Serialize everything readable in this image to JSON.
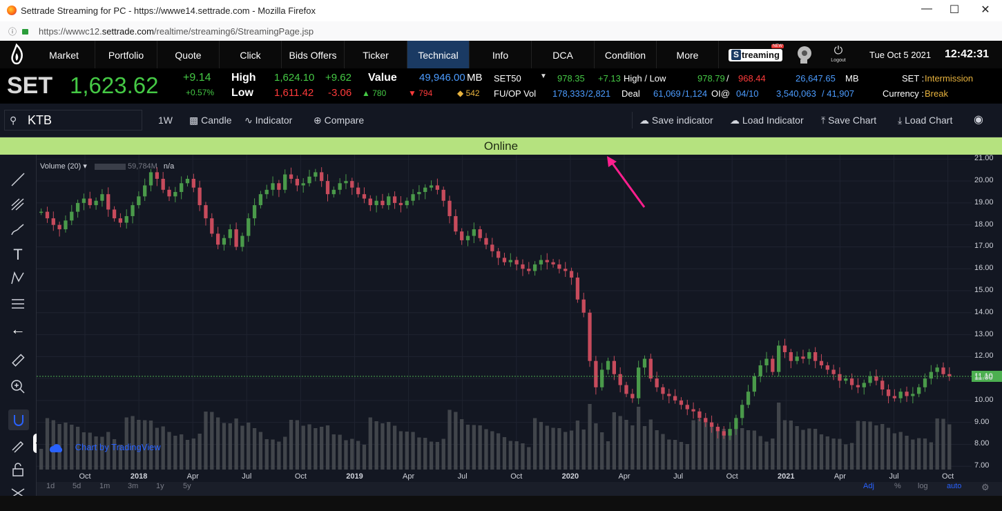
{
  "window": {
    "title": "Settrade Streaming for PC - https://wwwe14.settrade.com - Mozilla Firefox",
    "url_prefix": "https://wwwc12.",
    "url_domain": "settrade.com",
    "url_path": "/realtime/streaming6/StreamingPage.jsp"
  },
  "nav": {
    "items": [
      "Market",
      "Portfolio",
      "Quote",
      "Click",
      "Bids Offers",
      "Ticker",
      "Technical",
      "Info",
      "DCA",
      "Condition",
      "More"
    ],
    "active": "Technical",
    "streaming_label": "treaming",
    "new_badge": "NEW",
    "logout_label": "Logout",
    "date": "Tue Oct 5 2021",
    "time": "12:42:31"
  },
  "market": {
    "index_name": "SET",
    "index_value": "1,623.62",
    "change": "+9.14",
    "change_pct": "+0.57%",
    "high_label": "High",
    "high_value": "1,624.10",
    "high_change": "+9.62",
    "low_label": "Low",
    "low_value": "1,611.42",
    "low_change": "-3.06",
    "value_label": "Value",
    "value_amount": "49,946.00",
    "value_unit": "MB",
    "up_count": "780",
    "down_count": "794",
    "unch_count": "542",
    "set50_label": "SET50",
    "set50_value": "978.35",
    "set50_change": "+7.13",
    "hl_label": "High / Low",
    "set50_high": "978.79",
    "slash": "/",
    "set50_low": "968.44",
    "set50_value_amt": "26,647.65",
    "set50_unit": "MB",
    "set_status_label": "SET :",
    "set_status": "Intermission",
    "fuop_label": "FU/OP Vol",
    "fuop_1": "178,333",
    "fuop_2": "/2,821",
    "deal_label": "Deal",
    "deal_1": "61,069",
    "deal_2": "/1,124",
    "oi_label": "OI@",
    "oi_date": "04/10",
    "oi_1": "3,540,063",
    "oi_2": "/ 41,907",
    "currency_label": "Currency :",
    "currency_status": "Break"
  },
  "toolbar": {
    "symbol": "KTB",
    "interval": "1W",
    "candle": "Candle",
    "indicator": "Indicator",
    "compare": "Compare",
    "save_indicator": "Save indicator",
    "load_indicator": "Load Indicator",
    "save_chart": "Save Chart",
    "load_chart": "Load Chart"
  },
  "status": {
    "online": "Online"
  },
  "legend": {
    "volume": "Volume (20)",
    "volume_value": "59,784M",
    "na": "n/a"
  },
  "watermark": "Chart by TradingView",
  "bottom": {
    "ranges": [
      "1d",
      "5d",
      "1m",
      "3m",
      "1y",
      "5y"
    ],
    "adj": "Adj",
    "pct": "%",
    "log": "log",
    "auto": "auto"
  },
  "colors": {
    "up": "#26a69a",
    "up_candle": "#4a9a4a",
    "down_candle": "#c74b5c",
    "volume": "#4a4d52",
    "online_bg": "#b5e27f",
    "arrow": "#ff1f8e",
    "price_line": "#4caf50"
  },
  "chart_data": {
    "type": "candlestick",
    "symbol": "KTB",
    "interval": "1W",
    "y_ticks": [
      "21.00",
      "20.00",
      "19.00",
      "18.00",
      "17.00",
      "16.00",
      "15.00",
      "14.00",
      "13.00",
      "12.00",
      "11.00",
      "10.00",
      "9.00",
      "8.00",
      "7.00"
    ],
    "ylim": [
      6.85,
      21.2
    ],
    "current_price": "11.10",
    "x_ticks": [
      "Oct",
      "2018",
      "Apr",
      "Jul",
      "Oct",
      "2019",
      "Apr",
      "Jul",
      "Oct",
      "2020",
      "Apr",
      "Jul",
      "Oct",
      "2021",
      "Apr",
      "Jul",
      "Oct"
    ],
    "x_tick_bold": [
      "2018",
      "2019",
      "2020",
      "2021"
    ],
    "close_series": [
      18.6,
      18.3,
      18.0,
      17.8,
      18.2,
      18.6,
      19.0,
      19.2,
      18.9,
      19.1,
      19.4,
      18.7,
      18.3,
      18.1,
      18.4,
      18.9,
      19.3,
      19.8,
      20.4,
      20.1,
      19.6,
      19.3,
      19.5,
      19.9,
      20.1,
      19.7,
      18.9,
      18.3,
      17.6,
      17.1,
      17.4,
      17.8,
      17.0,
      17.5,
      18.3,
      18.9,
      19.4,
      19.6,
      19.9,
      19.6,
      20.3,
      20.1,
      19.8,
      19.9,
      20.2,
      20.4,
      20.0,
      19.4,
      19.6,
      19.9,
      20.0,
      19.7,
      19.4,
      19.2,
      18.9,
      19.1,
      18.9,
      19.3,
      19.0,
      18.9,
      19.1,
      19.4,
      19.5,
      19.7,
      19.8,
      19.6,
      19.1,
      18.4,
      17.7,
      17.3,
      17.5,
      17.8,
      17.4,
      17.1,
      16.8,
      16.5,
      16.3,
      16.4,
      16.2,
      16.0,
      15.9,
      16.2,
      16.4,
      16.3,
      16.2,
      16.0,
      15.9,
      15.6,
      14.6,
      14.0,
      11.8,
      10.6,
      11.4,
      11.8,
      11.2,
      10.7,
      10.3,
      10.1,
      11.5,
      11.9,
      11.0,
      10.6,
      10.3,
      10.2,
      10.0,
      9.8,
      9.6,
      9.5,
      9.2,
      9.0,
      8.8,
      8.6,
      8.4,
      8.7,
      9.2,
      9.8,
      10.4,
      11.1,
      11.6,
      11.9,
      11.3,
      12.5,
      12.2,
      11.8,
      12.0,
      11.9,
      12.2,
      11.8,
      11.6,
      11.4,
      11.2,
      10.9,
      11.0,
      10.7,
      10.6,
      10.8,
      11.1,
      10.9,
      10.5,
      10.2,
      10.1,
      10.4,
      10.2,
      10.3,
      10.6,
      11.0,
      11.3,
      11.5,
      11.2,
      11.1
    ]
  }
}
